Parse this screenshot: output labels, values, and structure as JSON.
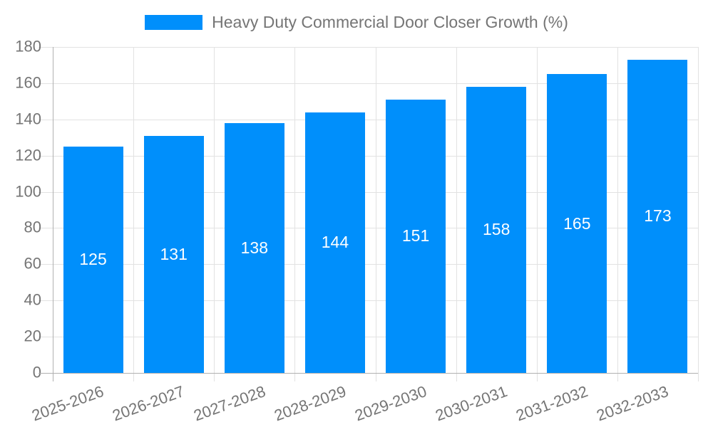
{
  "legend": {
    "label": "Heavy Duty Commercial Door Closer Growth (%)"
  },
  "chart_data": {
    "type": "bar",
    "title": "Heavy Duty Commercial Door Closer Growth (%)",
    "categories": [
      "2025-2026",
      "2026-2027",
      "2027-2028",
      "2028-2029",
      "2029-2030",
      "2030-2031",
      "2031-2032",
      "2032-2033"
    ],
    "values": [
      125,
      131,
      138,
      144,
      151,
      158,
      165,
      173
    ],
    "xlabel": "",
    "ylabel": "",
    "ylim": [
      0,
      180
    ],
    "y_ticks": [
      0,
      20,
      40,
      60,
      80,
      100,
      120,
      140,
      160,
      180
    ],
    "grid": true,
    "legend_position": "top",
    "colors": {
      "bar": "#008FFB",
      "bar_value_text": "#ffffff",
      "axis_text": "#757575",
      "axis_line": "#b0b0b0",
      "gridline": "#e2e2e2"
    }
  }
}
